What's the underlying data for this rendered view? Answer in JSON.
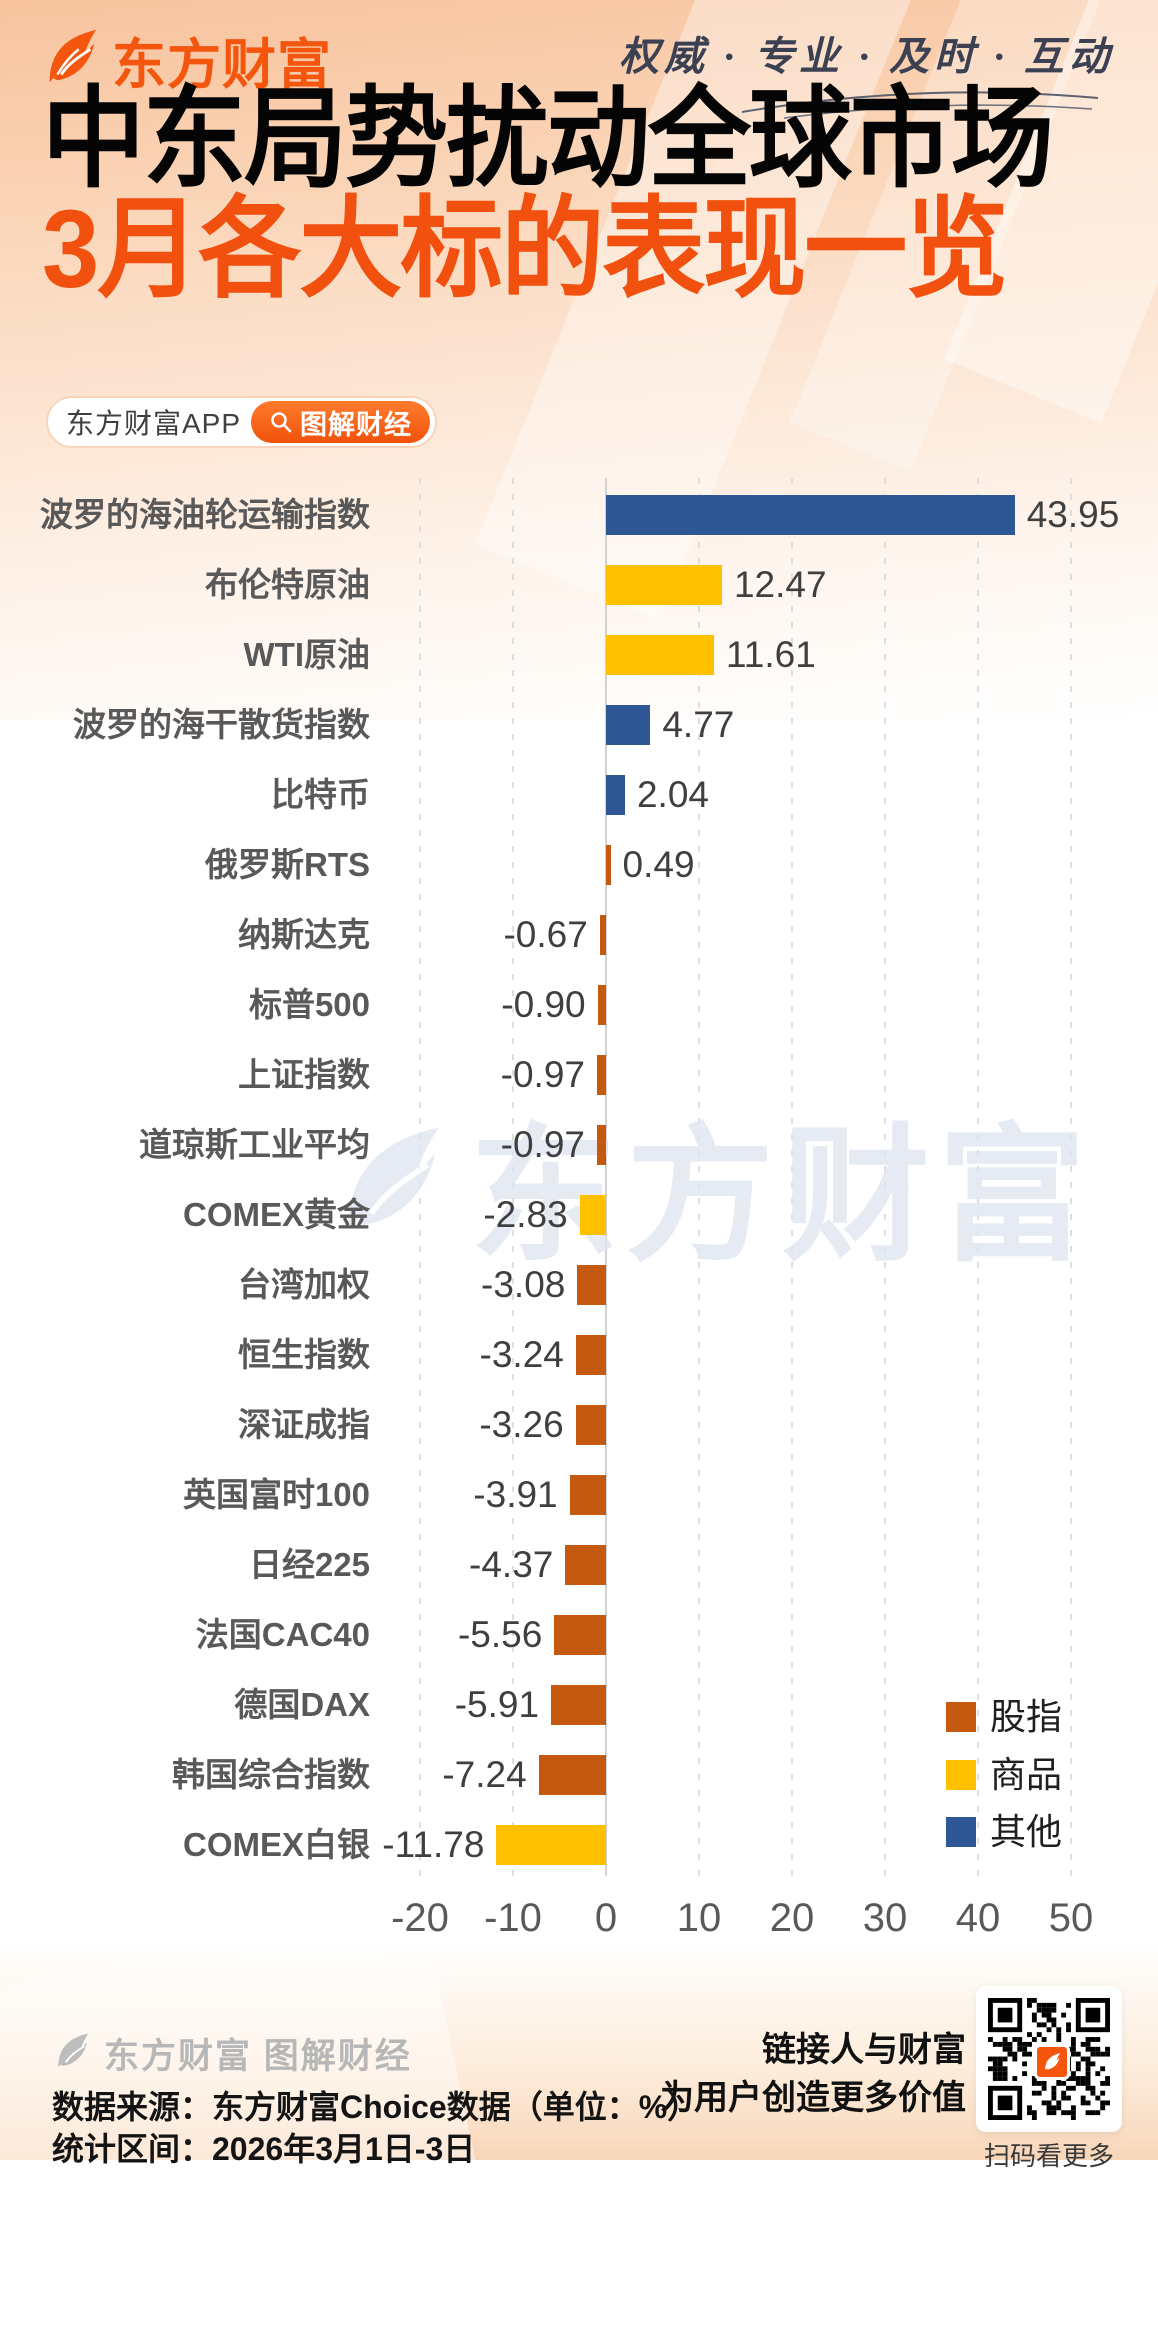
{
  "header": {
    "brand": "东方财富",
    "tagline": "权威 · 专业 · 及时 · 互动"
  },
  "title": {
    "line1": "中东局势扰动全球市场",
    "line2": "3月各大标的表现一览"
  },
  "badge": {
    "app_label": "东方财富APP",
    "tag_label": "图解财经"
  },
  "icons": {
    "brand_logo": "leaf-logo-icon",
    "badge_search": "magnifier-icon",
    "qr": "qr-code"
  },
  "colors": {
    "brand_orange": "#f4560e",
    "subtitle_orange": "#f1500e",
    "stock_index": "#c5590f",
    "commodity": "#ffc000",
    "other": "#2f5695"
  },
  "chart_data": {
    "type": "bar",
    "orientation": "horizontal",
    "unit": "%",
    "xlim": [
      -20,
      50
    ],
    "ticks": [
      -20,
      -10,
      0,
      10,
      20,
      30,
      40,
      50
    ],
    "grid": "vertical-dashed",
    "legend_position": "bottom-right",
    "categories": [
      "波罗的海油轮运输指数",
      "布伦特原油",
      "WTI原油",
      "波罗的海干散货指数",
      "比特币",
      "俄罗斯RTS",
      "纳斯达克",
      "标普500",
      "上证指数",
      "道琼斯工业平均",
      "COMEX黄金",
      "台湾加权",
      "恒生指数",
      "深证成指",
      "英国富时100",
      "日经225",
      "法国CAC40",
      "德国DAX",
      "韩国综合指数",
      "COMEX白银"
    ],
    "values": [
      43.95,
      12.47,
      11.61,
      4.77,
      2.04,
      0.49,
      -0.67,
      -0.9,
      -0.97,
      -0.97,
      -2.83,
      -3.08,
      -3.24,
      -3.26,
      -3.91,
      -4.37,
      -5.56,
      -5.91,
      -7.24,
      -11.78
    ],
    "value_labels": [
      "43.95",
      "12.47",
      "11.61",
      "4.77",
      "2.04",
      "0.49",
      "-0.67",
      "-0.90",
      "-0.97",
      "-0.97",
      "-2.83",
      "-3.08",
      "-3.24",
      "-3.26",
      "-3.91",
      "-4.37",
      "-5.56",
      "-5.91",
      "-7.24",
      "-11.78"
    ],
    "groups": [
      "其他",
      "商品",
      "商品",
      "其他",
      "其他",
      "股指",
      "股指",
      "股指",
      "股指",
      "股指",
      "商品",
      "股指",
      "股指",
      "股指",
      "股指",
      "股指",
      "股指",
      "股指",
      "股指",
      "商品"
    ],
    "legend": [
      {
        "label": "股指",
        "color": "#c5590f"
      },
      {
        "label": "商品",
        "color": "#ffc000"
      },
      {
        "label": "其他",
        "color": "#2f5695"
      }
    ]
  },
  "watermark": {
    "text": "东方财富"
  },
  "footer": {
    "brand_line": "东方财富 图解财经",
    "source_line": "数据来源：东方财富Choice数据（单位：%）",
    "range_line": "统计区间：2026年3月1日-3日",
    "slogan_line1": "链接人与财富",
    "slogan_line2": "为用户创造更多价值",
    "qr_caption": "扫码看更多"
  }
}
